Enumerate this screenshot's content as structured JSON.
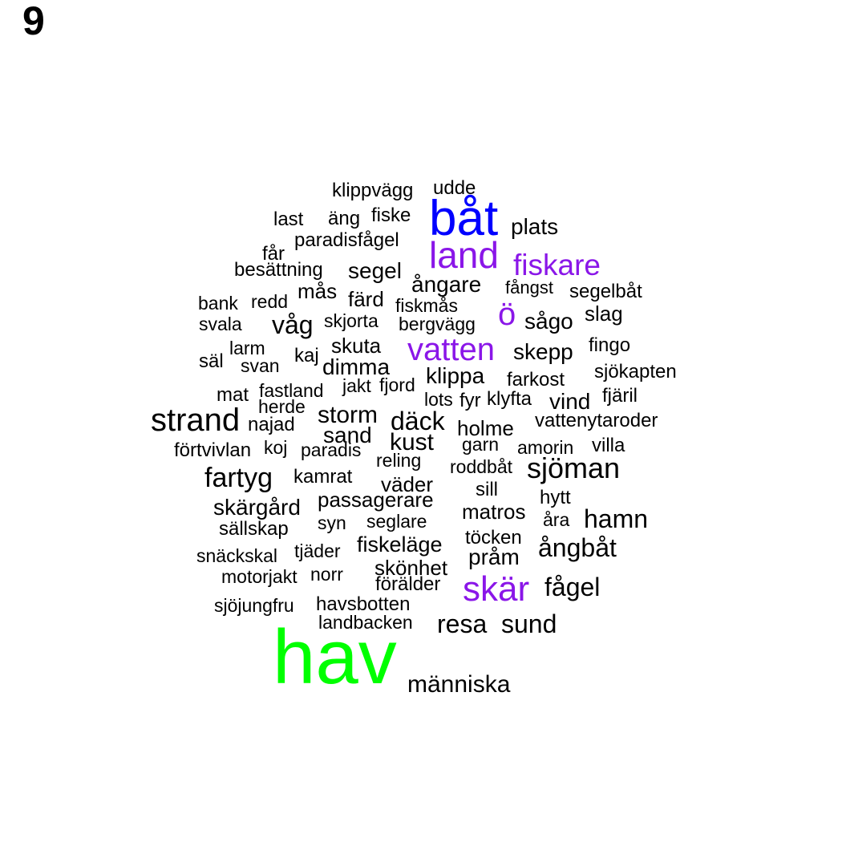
{
  "panel_number": "9",
  "colors": {
    "default": "#000000",
    "blue": "#0000ff",
    "purple": "#8a16e8",
    "green": "#00ff00"
  },
  "words": [
    {
      "text": "hav",
      "color": "green"
    },
    {
      "text": "båt",
      "color": "blue"
    },
    {
      "text": "land",
      "color": "purple"
    },
    {
      "text": "fiskare",
      "color": "purple"
    },
    {
      "text": "vatten",
      "color": "purple"
    },
    {
      "text": "ö",
      "color": "purple"
    },
    {
      "text": "skär",
      "color": "purple"
    },
    {
      "text": "strand"
    },
    {
      "text": "sjöman"
    },
    {
      "text": "fartyg"
    },
    {
      "text": "resa"
    },
    {
      "text": "sund"
    },
    {
      "text": "människa"
    },
    {
      "text": "fågel"
    },
    {
      "text": "hamn"
    },
    {
      "text": "ångbåt"
    },
    {
      "text": "däck"
    },
    {
      "text": "storm"
    },
    {
      "text": "kust"
    },
    {
      "text": "sand"
    },
    {
      "text": "klippa"
    },
    {
      "text": "dimma"
    },
    {
      "text": "våg"
    },
    {
      "text": "segel"
    },
    {
      "text": "ångare"
    },
    {
      "text": "skepp"
    },
    {
      "text": "plats"
    },
    {
      "text": "skärgård"
    },
    {
      "text": "fiskeläge"
    },
    {
      "text": "pråm"
    },
    {
      "text": "matros"
    },
    {
      "text": "skönhet"
    },
    {
      "text": "väder"
    },
    {
      "text": "vind"
    },
    {
      "text": "holme"
    },
    {
      "text": "passagerare"
    },
    {
      "text": "skuta"
    },
    {
      "text": "sågo"
    },
    {
      "text": "slag"
    },
    {
      "text": "färd"
    },
    {
      "text": "mås"
    },
    {
      "text": "kamrat"
    },
    {
      "text": "klippvägg"
    },
    {
      "text": "udde"
    },
    {
      "text": "last"
    },
    {
      "text": "äng"
    },
    {
      "text": "fiske"
    },
    {
      "text": "paradisfågel"
    },
    {
      "text": "får"
    },
    {
      "text": "besättning"
    },
    {
      "text": "fångst"
    },
    {
      "text": "segelbåt"
    },
    {
      "text": "bank"
    },
    {
      "text": "redd"
    },
    {
      "text": "fiskmås"
    },
    {
      "text": "svala"
    },
    {
      "text": "skjorta"
    },
    {
      "text": "bergvägg"
    },
    {
      "text": "fingo"
    },
    {
      "text": "larm"
    },
    {
      "text": "säl"
    },
    {
      "text": "svan"
    },
    {
      "text": "kaj"
    },
    {
      "text": "sjökapten"
    },
    {
      "text": "farkost"
    },
    {
      "text": "mat"
    },
    {
      "text": "fastland"
    },
    {
      "text": "jakt"
    },
    {
      "text": "fjord"
    },
    {
      "text": "fjäril"
    },
    {
      "text": "herde"
    },
    {
      "text": "lots"
    },
    {
      "text": "fyr"
    },
    {
      "text": "klyfta"
    },
    {
      "text": "najad"
    },
    {
      "text": "vattenytaroder"
    },
    {
      "text": "förtvivlan"
    },
    {
      "text": "koj"
    },
    {
      "text": "paradis"
    },
    {
      "text": "garn"
    },
    {
      "text": "amorin"
    },
    {
      "text": "villa"
    },
    {
      "text": "reling"
    },
    {
      "text": "roddbåt"
    },
    {
      "text": "sill"
    },
    {
      "text": "hytt"
    },
    {
      "text": "åra"
    },
    {
      "text": "sällskap"
    },
    {
      "text": "syn"
    },
    {
      "text": "seglare"
    },
    {
      "text": "töcken"
    },
    {
      "text": "snäckskal"
    },
    {
      "text": "tjäder"
    },
    {
      "text": "motorjakt"
    },
    {
      "text": "norr"
    },
    {
      "text": "förälder"
    },
    {
      "text": "sjöjungfru"
    },
    {
      "text": "havsbotten"
    },
    {
      "text": "landbacken"
    }
  ]
}
